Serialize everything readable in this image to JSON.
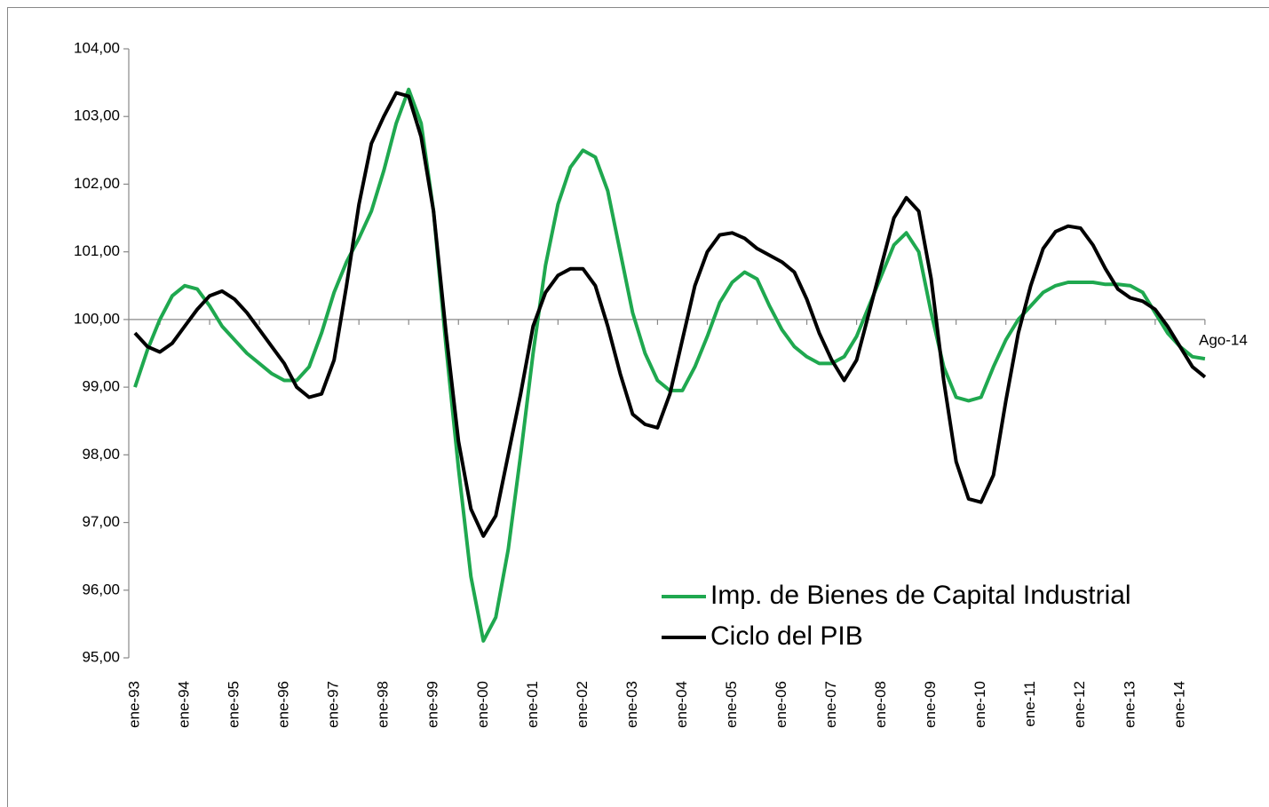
{
  "chart_data": {
    "type": "line",
    "categories": [
      "ene-93",
      null,
      null,
      null,
      "ene-94",
      null,
      null,
      null,
      "ene-95",
      null,
      null,
      null,
      "ene-96",
      null,
      null,
      null,
      "ene-97",
      null,
      null,
      null,
      "ene-98",
      null,
      null,
      null,
      "ene-99",
      null,
      null,
      null,
      "ene-00",
      null,
      null,
      null,
      "ene-01",
      null,
      null,
      null,
      "ene-02",
      null,
      null,
      null,
      "ene-03",
      null,
      null,
      null,
      "ene-04",
      null,
      null,
      null,
      "ene-05",
      null,
      null,
      null,
      "ene-06",
      null,
      null,
      null,
      "ene-07",
      null,
      null,
      null,
      "ene-08",
      null,
      null,
      null,
      "ene-09",
      null,
      null,
      null,
      "ene-10",
      null,
      null,
      null,
      "ene-11",
      null,
      null,
      null,
      "ene-12",
      null,
      null,
      null,
      "ene-13",
      null,
      null,
      null,
      "ene-14",
      null,
      null
    ],
    "series": [
      {
        "name": "Imp. de Bienes de Capital Industrial",
        "color": "#1fa84f",
        "values": [
          99.0,
          99.55,
          100.0,
          100.35,
          100.5,
          100.45,
          100.2,
          99.9,
          99.7,
          99.5,
          99.35,
          99.2,
          99.1,
          99.1,
          99.3,
          99.8,
          100.4,
          100.85,
          101.2,
          101.6,
          102.2,
          102.9,
          103.4,
          102.9,
          101.6,
          99.6,
          97.8,
          96.2,
          95.25,
          95.6,
          96.6,
          98.0,
          99.5,
          100.8,
          101.7,
          102.25,
          102.5,
          102.4,
          101.9,
          101.0,
          100.1,
          99.5,
          99.1,
          98.95,
          98.95,
          99.3,
          99.75,
          100.25,
          100.55,
          100.7,
          100.6,
          100.2,
          99.85,
          99.6,
          99.45,
          99.35,
          99.35,
          99.45,
          99.75,
          100.2,
          100.65,
          101.1,
          101.28,
          101.0,
          100.1,
          99.3,
          98.85,
          98.8,
          98.85,
          99.3,
          99.7,
          100.0,
          100.2,
          100.4,
          100.5,
          100.55,
          100.55,
          100.55,
          100.52,
          100.52,
          100.5,
          100.4,
          100.1,
          99.8,
          99.6,
          99.45,
          99.42
        ]
      },
      {
        "name": "Ciclo del PIB",
        "color": "#000000",
        "values": [
          99.8,
          99.6,
          99.52,
          99.65,
          99.9,
          100.15,
          100.35,
          100.42,
          100.3,
          100.1,
          99.85,
          99.6,
          99.35,
          99.0,
          98.85,
          98.9,
          99.4,
          100.5,
          101.7,
          102.6,
          103.0,
          103.35,
          103.3,
          102.7,
          101.6,
          99.8,
          98.2,
          97.2,
          96.8,
          97.1,
          98.0,
          98.9,
          99.9,
          100.4,
          100.65,
          100.75,
          100.75,
          100.5,
          99.9,
          99.2,
          98.6,
          98.45,
          98.4,
          98.9,
          99.7,
          100.5,
          101.0,
          101.25,
          101.28,
          101.2,
          101.05,
          100.95,
          100.85,
          100.7,
          100.3,
          99.8,
          99.4,
          99.1,
          99.4,
          100.1,
          100.8,
          101.5,
          101.8,
          101.6,
          100.6,
          99.1,
          97.9,
          97.35,
          97.3,
          97.7,
          98.8,
          99.8,
          100.5,
          101.05,
          101.3,
          101.38,
          101.35,
          101.1,
          100.75,
          100.45,
          100.32,
          100.27,
          100.15,
          99.9,
          99.6,
          99.3,
          99.15
        ]
      }
    ],
    "ylim": [
      95,
      104
    ],
    "yticks": [
      {
        "value": 95,
        "label": "95,00"
      },
      {
        "value": 96,
        "label": "96,00"
      },
      {
        "value": 97,
        "label": "97,00"
      },
      {
        "value": 98,
        "label": "98,00"
      },
      {
        "value": 99,
        "label": "99,00"
      },
      {
        "value": 100,
        "label": "100,00"
      },
      {
        "value": 101,
        "label": "101,00"
      },
      {
        "value": 102,
        "label": "102,00"
      },
      {
        "value": 103,
        "label": "103,00"
      },
      {
        "value": 104,
        "label": "104,00"
      }
    ],
    "x_axis_at": 100,
    "annotation": "Ago-14",
    "legend": "lower right",
    "grid": false
  }
}
